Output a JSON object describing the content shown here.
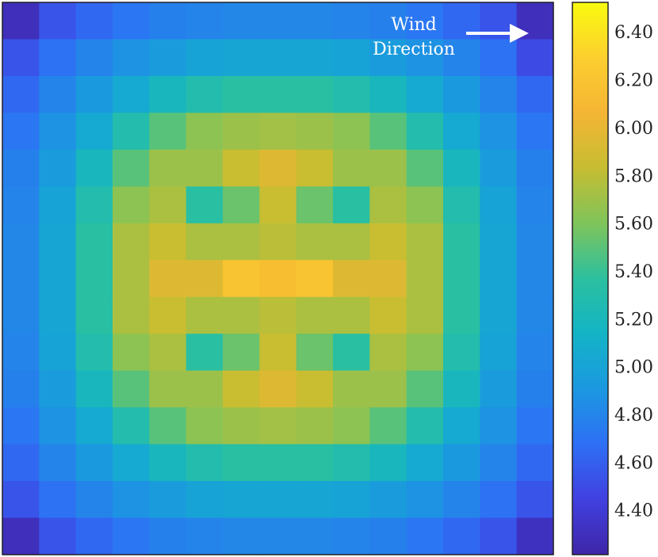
{
  "chart_data": {
    "type": "heatmap",
    "annotation": [
      "Wind",
      "Direction"
    ],
    "z": [
      [
        4.3,
        4.55,
        4.65,
        4.72,
        4.78,
        4.8,
        4.82,
        4.82,
        4.82,
        4.8,
        4.78,
        4.72,
        4.65,
        4.55,
        4.3
      ],
      [
        4.55,
        4.7,
        4.8,
        4.88,
        4.95,
        5.0,
        5.02,
        5.02,
        5.02,
        5.0,
        4.95,
        4.88,
        4.8,
        4.7,
        4.5
      ],
      [
        4.65,
        4.8,
        4.92,
        5.05,
        5.2,
        5.3,
        5.35,
        5.35,
        5.35,
        5.3,
        5.2,
        5.05,
        4.92,
        4.8,
        4.65
      ],
      [
        4.72,
        4.88,
        5.05,
        5.3,
        5.5,
        5.65,
        5.7,
        5.72,
        5.7,
        5.65,
        5.5,
        5.3,
        5.05,
        4.88,
        4.72
      ],
      [
        4.78,
        4.95,
        5.2,
        5.5,
        5.7,
        5.7,
        5.85,
        5.95,
        5.85,
        5.7,
        5.7,
        5.5,
        5.2,
        4.95,
        4.78
      ],
      [
        4.8,
        5.0,
        5.3,
        5.65,
        5.75,
        5.35,
        5.55,
        5.85,
        5.55,
        5.35,
        5.75,
        5.65,
        5.3,
        5.0,
        4.8
      ],
      [
        4.82,
        5.02,
        5.35,
        5.75,
        5.85,
        5.75,
        5.75,
        5.8,
        5.75,
        5.75,
        5.85,
        5.75,
        5.35,
        5.02,
        4.82
      ],
      [
        4.82,
        5.02,
        5.35,
        5.75,
        5.95,
        5.95,
        6.2,
        6.15,
        6.2,
        5.95,
        5.95,
        5.75,
        5.35,
        5.02,
        4.82
      ],
      [
        4.82,
        5.02,
        5.35,
        5.75,
        5.85,
        5.75,
        5.75,
        5.8,
        5.75,
        5.75,
        5.85,
        5.75,
        5.35,
        5.02,
        4.82
      ],
      [
        4.8,
        5.0,
        5.3,
        5.65,
        5.75,
        5.35,
        5.55,
        5.85,
        5.55,
        5.35,
        5.75,
        5.65,
        5.3,
        5.0,
        4.8
      ],
      [
        4.78,
        4.95,
        5.2,
        5.5,
        5.7,
        5.7,
        5.85,
        5.95,
        5.85,
        5.7,
        5.7,
        5.5,
        5.2,
        4.95,
        4.78
      ],
      [
        4.72,
        4.88,
        5.05,
        5.3,
        5.5,
        5.65,
        5.7,
        5.72,
        5.7,
        5.65,
        5.5,
        5.3,
        5.05,
        4.88,
        4.72
      ],
      [
        4.65,
        4.8,
        4.92,
        5.05,
        5.2,
        5.3,
        5.35,
        5.35,
        5.35,
        5.3,
        5.2,
        5.05,
        4.92,
        4.8,
        4.65
      ],
      [
        4.55,
        4.7,
        4.8,
        4.88,
        4.95,
        5.0,
        5.02,
        5.02,
        5.02,
        5.0,
        4.95,
        4.88,
        4.8,
        4.7,
        4.55
      ],
      [
        4.3,
        4.55,
        4.65,
        4.72,
        4.78,
        4.8,
        4.82,
        4.82,
        4.82,
        4.8,
        4.78,
        4.72,
        4.65,
        4.55,
        4.32
      ]
    ],
    "zlim": [
      4.22,
      6.53
    ],
    "zticks": [
      {
        "value": 4.4,
        "label": "4.40"
      },
      {
        "value": 4.6,
        "label": "4.60"
      },
      {
        "value": 4.8,
        "label": "4.80"
      },
      {
        "value": 5.0,
        "label": "5.00"
      },
      {
        "value": 5.2,
        "label": "5.20"
      },
      {
        "value": 5.4,
        "label": "5.40"
      },
      {
        "value": 5.6,
        "label": "5.60"
      },
      {
        "value": 5.8,
        "label": "5.80"
      },
      {
        "value": 6.0,
        "label": "6.00"
      },
      {
        "value": 6.2,
        "label": "6.20"
      },
      {
        "value": 6.4,
        "label": "6.40"
      }
    ],
    "colormap": [
      "#3e26a8",
      "#4140e0",
      "#2e6ff5",
      "#1b98e0",
      "#13b4c6",
      "#2cc09f",
      "#7fc45a",
      "#c6bd32",
      "#f4b534",
      "#fccf2f",
      "#f9fb0e"
    ]
  }
}
